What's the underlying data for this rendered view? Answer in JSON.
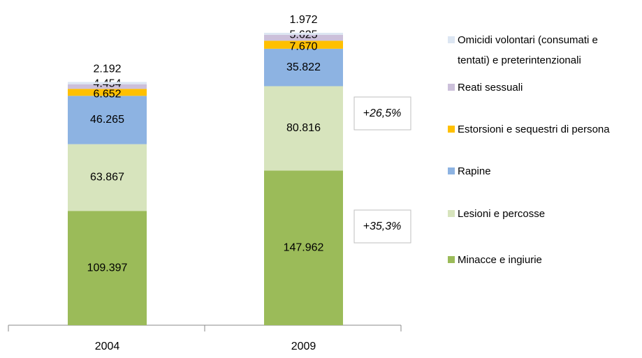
{
  "chart_data": {
    "type": "stacked_bar",
    "categories": [
      "2004",
      "2009"
    ],
    "series": [
      {
        "name": "Minacce e ingiurie",
        "color": "#9bbb59",
        "values": [
          109397,
          147962
        ],
        "value_labels": [
          "109.397",
          "147.962"
        ]
      },
      {
        "name": "Lesioni e percosse",
        "color": "#d7e4bd",
        "values": [
          63867,
          80816
        ],
        "value_labels": [
          "63.867",
          "80.816"
        ]
      },
      {
        "name": "Rapine",
        "color": "#8db3e2",
        "values": [
          46265,
          35822
        ],
        "value_labels": [
          "46.265",
          "35.822"
        ]
      },
      {
        "name": "Estorsioni e sequestri di persona",
        "color": "#ffc000",
        "values": [
          6652,
          7670
        ],
        "value_labels": [
          "6.652",
          "7.670"
        ]
      },
      {
        "name": "Reati sessuali",
        "color": "#ccc0da",
        "values": [
          4454,
          5625
        ],
        "value_labels": [
          "4.454",
          "5.625"
        ]
      },
      {
        "name": "Omicidi  volontari (consumati e tentati) e preterintenzionali",
        "color": "#dce6f2",
        "values": [
          2192,
          1972
        ],
        "value_labels": [
          "2.192",
          "1.972"
        ]
      }
    ],
    "annotations": [
      "+26,5%",
      "+35,3%"
    ]
  }
}
